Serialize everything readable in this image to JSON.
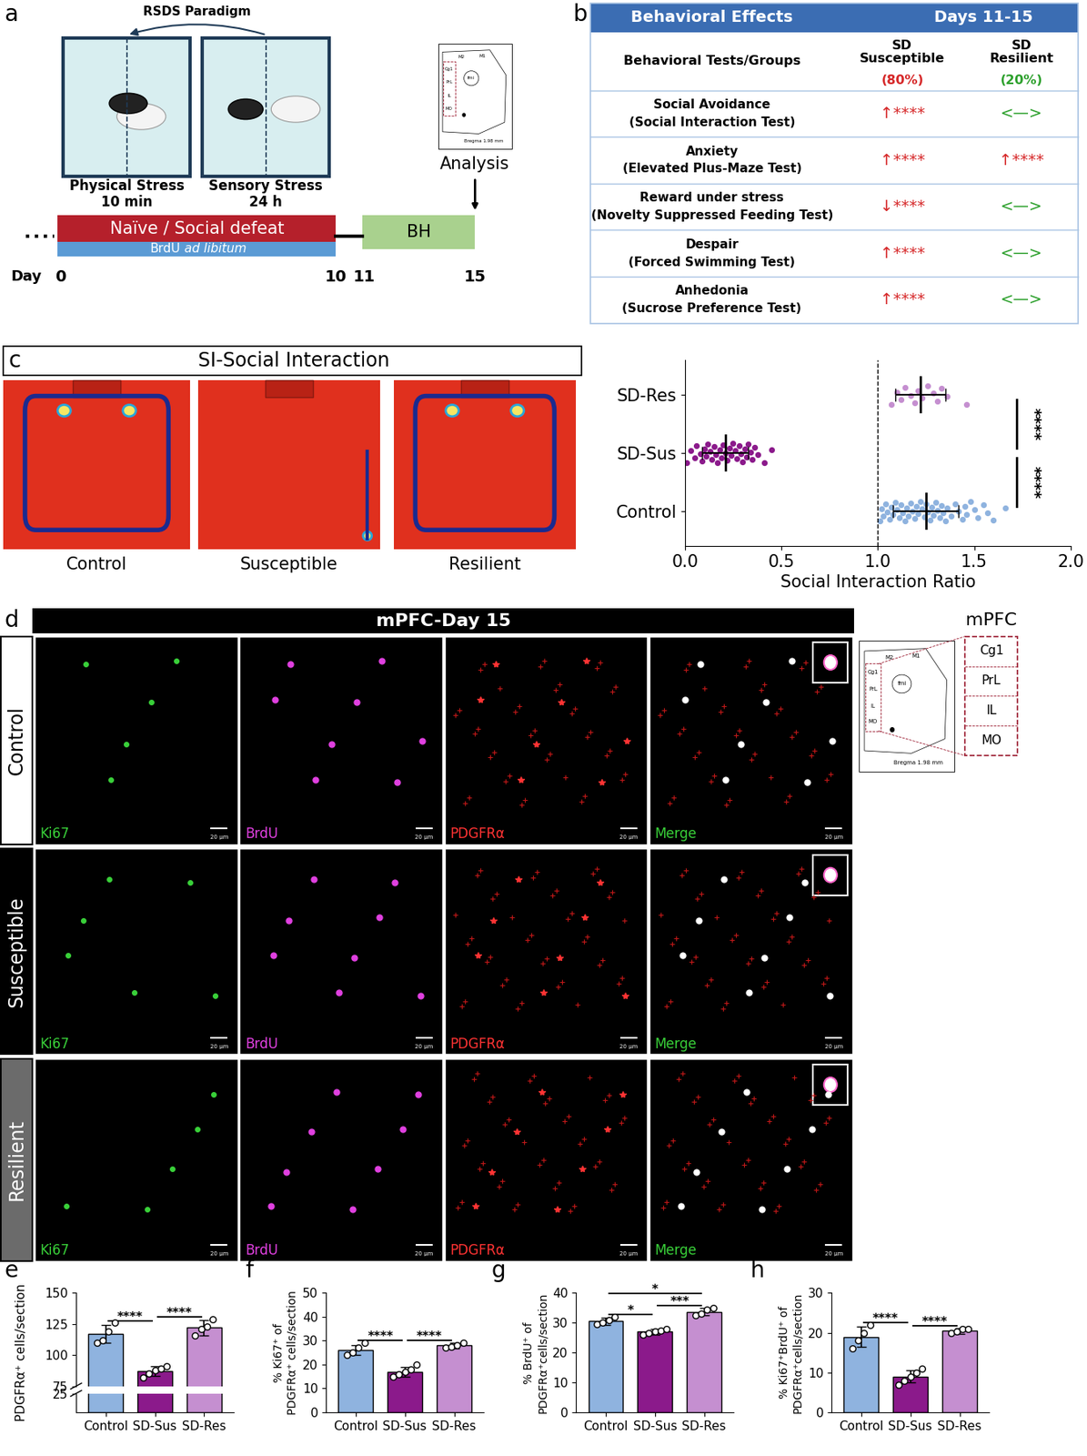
{
  "panel_labels": [
    "a",
    "b",
    "c",
    "d",
    "e",
    "f",
    "g",
    "h"
  ],
  "panel_a": {
    "title": "RSDS Paradigm",
    "stages": [
      {
        "name": "Physical Stress",
        "duration": "10 min"
      },
      {
        "name": "Sensory Stress",
        "duration": "24 h"
      }
    ],
    "defeat": {
      "text": "Naïve / Social defeat",
      "color": "#b5202b"
    },
    "brdu": {
      "text": "BrdU",
      "note": "ad libitum",
      "color": "#5b9bd5"
    },
    "behavior": {
      "text": "BH",
      "color": "#a9d18e"
    },
    "analysis": "Analysis",
    "day_label": "Day",
    "days": [
      "0",
      "10",
      "11",
      "15"
    ]
  },
  "atlas": {
    "labels": [
      "M2",
      "M1",
      "Cg1",
      "PrL",
      "IL",
      "MO",
      "fmi"
    ],
    "bregma": "Bregma 1.98 mm"
  },
  "panel_b": {
    "header": [
      "Behavioral Effects",
      "Days 11-15"
    ],
    "color": "#3b6db3",
    "columns": [
      {
        "text": "Behavioral Tests/Groups"
      },
      {
        "text": "SD\nSusceptible",
        "percent": "(80%)",
        "color": "#d62728"
      },
      {
        "text": "SD\nResilient",
        "percent": "(20%)",
        "color": "#2ca02c"
      }
    ],
    "rows": [
      {
        "effect": "Social Avoidance",
        "test": "(Social Interaction Test)",
        "cells": [
          {
            "text": "↑****",
            "color": "#d62728"
          },
          {
            "text": "<—>",
            "color": "#2ca02c"
          }
        ]
      },
      {
        "effect": "Anxiety",
        "test": "(Elevated Plus-Maze Test)",
        "cells": [
          {
            "text": "↑****",
            "color": "#d62728"
          },
          {
            "text": "↑****",
            "color": "#d62728"
          }
        ]
      },
      {
        "effect": "Reward under stress",
        "test": "(Novelty Suppressed Feeding Test)",
        "cells": [
          {
            "text": "↓****",
            "color": "#d62728"
          },
          {
            "text": "<—>",
            "color": "#2ca02c"
          }
        ]
      },
      {
        "effect": "Despair",
        "test": "(Forced Swimming Test)",
        "cells": [
          {
            "text": "↑****",
            "color": "#d62728"
          },
          {
            "text": "<—>",
            "color": "#2ca02c"
          }
        ]
      },
      {
        "effect": "Anhedonia",
        "test": "(Sucrose Preference Test)",
        "cells": [
          {
            "text": "↑****",
            "color": "#d62728"
          },
          {
            "text": "<—>",
            "color": "#2ca02c"
          }
        ]
      }
    ]
  },
  "panel_c": {
    "title": "SI-Social Interaction",
    "images": [
      "Control",
      "Susceptible",
      "Resilient"
    ]
  },
  "panel_d": {
    "title": "mPFC-Day 15",
    "rows": [
      {
        "label": "Control",
        "color": "#ffffff"
      },
      {
        "label": "Susceptible",
        "color": "#000000"
      },
      {
        "label": "Resilient",
        "color": "#6b6b6b"
      }
    ],
    "channels": [
      {
        "name": "Ki67",
        "color": "#39d039"
      },
      {
        "name": "BrdU",
        "color": "#e040e0"
      },
      {
        "name": "PDGFRα",
        "color": "#ff3333"
      },
      {
        "name": "Merge",
        "color": "#39d039"
      }
    ],
    "scale_bar": "20 μm",
    "region": "mPFC",
    "subregions": [
      "Cg1",
      "PrL",
      "IL",
      "MO"
    ]
  },
  "chart_data": [
    {
      "type": "scatter",
      "orientation": "horizontal",
      "categories": [
        "Control",
        "SD-Sus",
        "SD-Res"
      ],
      "colors": [
        "#8fb3df",
        "#8b1a8b",
        "#c58fd0"
      ],
      "values": [
        [
          1.01,
          1.02,
          1.03,
          1.04,
          1.05,
          1.06,
          1.07,
          1.08,
          1.09,
          1.1,
          1.11,
          1.12,
          1.13,
          1.14,
          1.15,
          1.16,
          1.17,
          1.18,
          1.19,
          1.2,
          1.21,
          1.22,
          1.23,
          1.24,
          1.25,
          1.26,
          1.27,
          1.28,
          1.29,
          1.3,
          1.31,
          1.32,
          1.33,
          1.34,
          1.35,
          1.36,
          1.38,
          1.4,
          1.42,
          1.44,
          1.45,
          1.46,
          1.48,
          1.5,
          1.52,
          1.55,
          1.57,
          1.6,
          1.66
        ],
        [
          0.01,
          0.03,
          0.05,
          0.06,
          0.08,
          0.09,
          0.1,
          0.11,
          0.12,
          0.13,
          0.14,
          0.15,
          0.16,
          0.17,
          0.18,
          0.19,
          0.2,
          0.21,
          0.22,
          0.23,
          0.24,
          0.25,
          0.26,
          0.27,
          0.28,
          0.29,
          0.3,
          0.31,
          0.32,
          0.33,
          0.34,
          0.35,
          0.36,
          0.38,
          0.41,
          0.45
        ],
        [
          1.07,
          1.1,
          1.12,
          1.14,
          1.17,
          1.19,
          1.21,
          1.23,
          1.26,
          1.29,
          1.31,
          1.33,
          1.36,
          1.46
        ]
      ],
      "means": [
        1.25,
        0.21,
        1.22
      ],
      "sd": [
        0.17,
        0.12,
        0.13
      ],
      "xlabel": "Social Interaction Ratio",
      "xlim": [
        0,
        2
      ],
      "xticks": [
        {
          "value": 0,
          "label": "0.0"
        },
        0.5,
        {
          "value": 1,
          "label": "1.0"
        },
        1.5,
        {
          "value": 2,
          "label": "2.0"
        }
      ],
      "reference_line": 1,
      "significance": [
        {
          "between": [
            "SD-Res",
            "SD-Sus"
          ],
          "label": "****"
        },
        {
          "between": [
            "SD-Sus",
            "Control"
          ],
          "label": "****"
        }
      ]
    },
    {
      "type": "bar",
      "categories": [
        "Control",
        "SD-Sus",
        "SD-Res"
      ],
      "colors": [
        "#8fb3df",
        "#8b1a8b",
        "#c58fd0"
      ],
      "values": [
        117,
        87,
        122
      ],
      "errors": [
        7,
        4,
        6
      ],
      "points": [
        [
          110,
          112,
          119,
          126
        ],
        [
          82,
          85,
          88,
          89,
          91
        ],
        [
          116,
          121,
          123,
          129
        ]
      ],
      "ylabel": "PDGFRα⁺ cells/section",
      "ylim": [
        [
          0,
          25
        ],
        [
          75,
          150
        ]
      ],
      "yticks": [
        [
          25
        ],
        [
          75,
          100,
          125,
          150
        ]
      ],
      "significance": [
        {
          "between": [
            "Control",
            "SD-Sus"
          ],
          "label": "****"
        },
        {
          "between": [
            "SD-Sus",
            "SD-Res"
          ],
          "label": "****"
        }
      ]
    },
    {
      "type": "bar",
      "categories": [
        "Control",
        "SD-Sus",
        "SD-Res"
      ],
      "colors": [
        "#8fb3df",
        "#8b1a8b",
        "#c58fd0"
      ],
      "values": [
        26,
        17,
        28
      ],
      "errors": [
        2,
        2,
        1.2
      ],
      "points": [
        [
          24,
          25,
          27,
          29
        ],
        [
          15,
          16,
          17,
          18,
          20
        ],
        [
          27,
          27.5,
          28,
          29
        ]
      ],
      "ylabel": "% Ki67⁺ of\nPDGFRα⁺ cells/section",
      "ylim": [
        0,
        50
      ],
      "yticks": [
        0,
        10,
        20,
        30,
        40,
        50
      ],
      "significance": [
        {
          "between": [
            "Control",
            "SD-Sus"
          ],
          "label": "****"
        },
        {
          "between": [
            "SD-Sus",
            "SD-Res"
          ],
          "label": "****"
        }
      ]
    },
    {
      "type": "bar",
      "categories": [
        "Control",
        "SD-Sus",
        "SD-Res"
      ],
      "colors": [
        "#8fb3df",
        "#8b1a8b",
        "#c58fd0"
      ],
      "values": [
        30.5,
        27,
        33.7
      ],
      "errors": [
        1.3,
        1,
        1.3
      ],
      "points": [
        [
          29.5,
          30,
          31,
          32
        ],
        [
          26,
          26.5,
          27,
          27.5,
          28
        ],
        [
          32.5,
          33,
          34.5,
          35
        ]
      ],
      "ylabel": "% BrdU⁺ of\nPDGFRα⁺cells/section",
      "ylim": [
        0,
        40
      ],
      "yticks": [
        0,
        10,
        20,
        30,
        40
      ],
      "significance": [
        {
          "between": [
            "Control",
            "SD-Sus"
          ],
          "label": "*"
        },
        {
          "between": [
            "Control",
            "SD-Res"
          ],
          "label": "*"
        },
        {
          "between": [
            "SD-Sus",
            "SD-Res"
          ],
          "label": "***"
        }
      ]
    },
    {
      "type": "bar",
      "categories": [
        "Control",
        "SD-Sus",
        "SD-Res"
      ],
      "colors": [
        "#8fb3df",
        "#8b1a8b",
        "#c58fd0"
      ],
      "values": [
        19,
        9,
        20.5
      ],
      "errors": [
        2.5,
        1.5,
        0.7
      ],
      "points": [
        [
          16,
          18,
          20,
          22
        ],
        [
          7,
          8,
          9,
          10,
          11
        ],
        [
          20,
          20.3,
          21,
          21
        ]
      ],
      "ylabel": "% Ki67⁺BrdU⁺ of\nPDGFRα⁺cells/section",
      "ylim": [
        0,
        30
      ],
      "yticks": [
        0,
        10,
        20,
        30
      ],
      "significance": [
        {
          "between": [
            "Control",
            "SD-Sus"
          ],
          "label": "****"
        },
        {
          "between": [
            "SD-Sus",
            "SD-Res"
          ],
          "label": "****"
        }
      ]
    }
  ]
}
